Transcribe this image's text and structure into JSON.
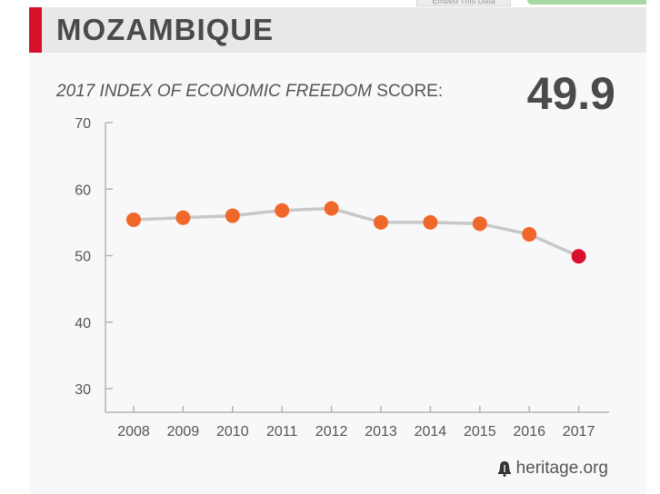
{
  "browser": {
    "embed_tab_label": "Embed This Data"
  },
  "header": {
    "country": "MOZAMBIQUE"
  },
  "score": {
    "label_italic": "2017 INDEX OF ECONOMIC FREEDOM",
    "label_rest": "SCORE:",
    "value": "49.9"
  },
  "footer": {
    "source": "heritage.org",
    "icon": "liberty-bell-icon"
  },
  "colors": {
    "accent": "#d7102b",
    "point": "#f0672a",
    "current_point": "#d7102b",
    "line": "#c8c8c8"
  },
  "chart_data": {
    "type": "line",
    "title": "",
    "xlabel": "",
    "ylabel": "",
    "categories": [
      "2008",
      "2009",
      "2010",
      "2011",
      "2012",
      "2013",
      "2014",
      "2015",
      "2016",
      "2017"
    ],
    "values": [
      55.4,
      55.7,
      56.0,
      56.8,
      57.1,
      55.0,
      55.0,
      54.8,
      53.2,
      49.9
    ],
    "ylim": [
      30,
      70
    ],
    "yticks": [
      70,
      60,
      50,
      40,
      30
    ],
    "grid": false,
    "legend": "none",
    "highlight_last": true
  }
}
